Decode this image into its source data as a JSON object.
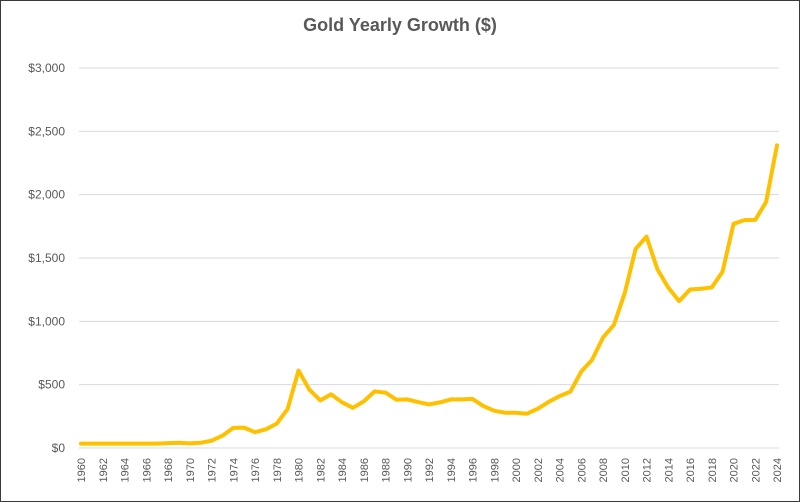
{
  "chart_data": {
    "type": "line",
    "title": "Gold Yearly Growth ($)",
    "xlabel": "",
    "ylabel": "",
    "ylim": [
      0,
      3000
    ],
    "y_ticks": [
      "$0",
      "$500",
      "$1,000",
      "$1,500",
      "$2,000",
      "$2,500",
      "$3,000"
    ],
    "y_tick_values": [
      0,
      500,
      1000,
      1500,
      2000,
      2500,
      3000
    ],
    "x_tick_labels": [
      "1960",
      "1962",
      "1964",
      "1966",
      "1968",
      "1970",
      "1972",
      "1974",
      "1976",
      "1978",
      "1980",
      "1982",
      "1984",
      "1986",
      "1988",
      "1990",
      "1992",
      "1994",
      "1996",
      "1998",
      "2000",
      "2002",
      "2004",
      "2006",
      "2008",
      "2010",
      "2012",
      "2014",
      "2016",
      "2018",
      "2020",
      "2022",
      "2024"
    ],
    "grid": true,
    "legend": "none",
    "line_color": "#FFC000",
    "series": [
      {
        "x": [
          1960,
          1961,
          1962,
          1963,
          1964,
          1965,
          1966,
          1967,
          1968,
          1969,
          1970,
          1971,
          1972,
          1973,
          1974,
          1975,
          1976,
          1977,
          1978,
          1979,
          1980,
          1981,
          1982,
          1983,
          1984,
          1985,
          1986,
          1987,
          1988,
          1989,
          1990,
          1991,
          1992,
          1993,
          1994,
          1995,
          1996,
          1997,
          1998,
          1999,
          2000,
          2001,
          2002,
          2003,
          2004,
          2005,
          2006,
          2007,
          2008,
          2009,
          2010,
          2011,
          2012,
          2013,
          2014,
          2015,
          2016,
          2017,
          2018,
          2019,
          2020,
          2021,
          2022,
          2023,
          2024
        ],
        "values": [
          35,
          35,
          35,
          35,
          35,
          35,
          35,
          35,
          39,
          41,
          36,
          41,
          58,
          97,
          159,
          161,
          125,
          148,
          193,
          307,
          612,
          460,
          376,
          424,
          361,
          317,
          368,
          447,
          437,
          381,
          384,
          362,
          344,
          360,
          384,
          384,
          388,
          331,
          294,
          279,
          279,
          271,
          310,
          364,
          410,
          445,
          604,
          696,
          872,
          972,
          1225,
          1572,
          1669,
          1411,
          1266,
          1160,
          1251,
          1257,
          1268,
          1393,
          1770,
          1799,
          1801,
          1943,
          2390
        ]
      }
    ]
  }
}
